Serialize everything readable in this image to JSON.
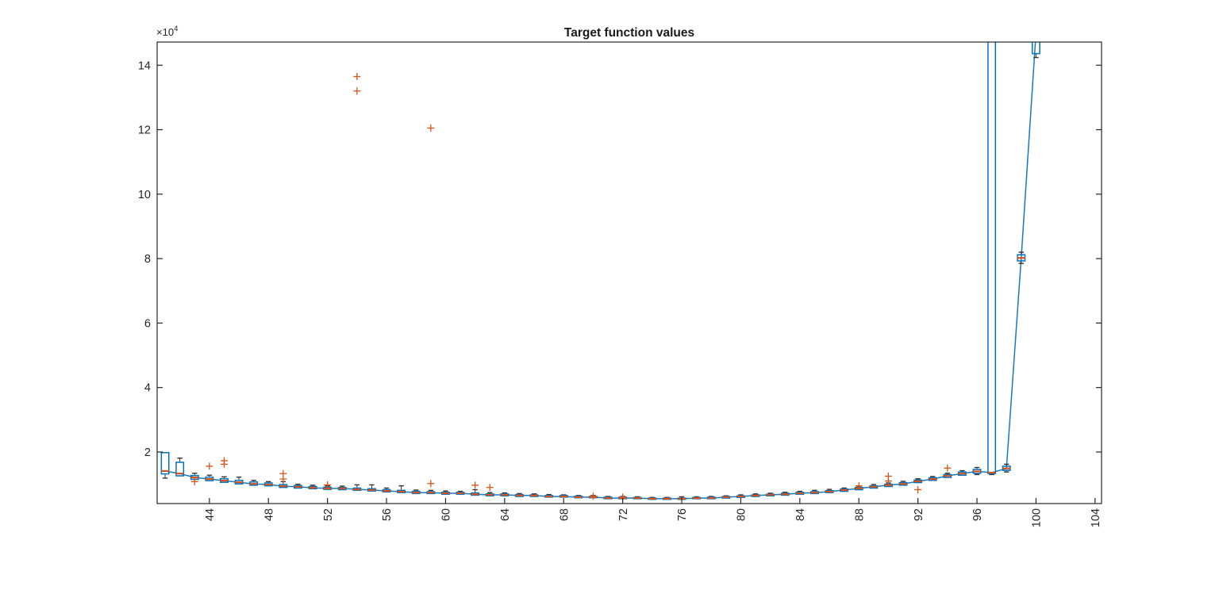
{
  "title": "Target function values",
  "y_axis": {
    "exponent_base": "×10",
    "exponent_power": "4",
    "ticks": [
      2,
      4,
      6,
      8,
      10,
      12,
      14
    ]
  },
  "x_axis": {
    "ticks": [
      44,
      48,
      52,
      56,
      60,
      64,
      68,
      72,
      76,
      80,
      84,
      88,
      92,
      96,
      100,
      104
    ]
  },
  "colors": {
    "box_edge": "#0072BD",
    "median": "#D95319",
    "median_line": "#1879BF",
    "whisker": "#333333",
    "outlier": "#D95319",
    "axis": "#262626",
    "background": "#ffffff"
  },
  "chart_data": {
    "type": "boxplot",
    "title": "Target function values",
    "xlabel": "",
    "ylabel": "×10^4",
    "value_unit": 10000,
    "xlim": [
      40.46,
      104.44
    ],
    "ylim_e4": [
      0.4,
      14.72
    ],
    "grid": false,
    "legend": "none",
    "notes": "Blue line connects box medians; boxes at x=97 and x=100 extend above the top axis (clipped); values in units of 1e4.",
    "box_format": [
      "x",
      "whisker_lo",
      "q1",
      "median",
      "q3",
      "whisker_hi"
    ],
    "boxes": [
      [
        41,
        1.19,
        1.32,
        1.41,
        1.98,
        1.98
      ],
      [
        42,
        1.26,
        1.26,
        1.33,
        1.68,
        1.81
      ],
      [
        43,
        1.15,
        1.15,
        1.21,
        1.27,
        1.34
      ],
      [
        44,
        1.11,
        1.11,
        1.16,
        1.22,
        1.28
      ],
      [
        45,
        1.06,
        1.06,
        1.11,
        1.17,
        1.23
      ],
      [
        46,
        1.01,
        1.01,
        1.06,
        1.12,
        1.22
      ],
      [
        47,
        0.97,
        0.97,
        1.01,
        1.07,
        1.12
      ],
      [
        48,
        0.95,
        0.95,
        0.99,
        1.04,
        1.08
      ],
      [
        49,
        0.9,
        0.9,
        0.94,
        0.99,
        1.08
      ],
      [
        50,
        0.88,
        0.88,
        0.92,
        0.96,
        1.0
      ],
      [
        51,
        0.86,
        0.86,
        0.89,
        0.93,
        0.97
      ],
      [
        52,
        0.84,
        0.84,
        0.87,
        0.91,
        0.95
      ],
      [
        53,
        0.83,
        0.83,
        0.87,
        0.9,
        0.94
      ],
      [
        54,
        0.81,
        0.81,
        0.84,
        0.88,
        0.98
      ],
      [
        55,
        0.79,
        0.79,
        0.82,
        0.86,
        0.98
      ],
      [
        56,
        0.76,
        0.76,
        0.79,
        0.83,
        0.88
      ],
      [
        57,
        0.74,
        0.74,
        0.77,
        0.81,
        0.95
      ],
      [
        58,
        0.71,
        0.71,
        0.74,
        0.78,
        0.82
      ],
      [
        59,
        0.71,
        0.71,
        0.74,
        0.77,
        0.81
      ],
      [
        60,
        0.69,
        0.69,
        0.72,
        0.75,
        0.79
      ],
      [
        61,
        0.69,
        0.69,
        0.72,
        0.75,
        0.78
      ],
      [
        62,
        0.66,
        0.66,
        0.69,
        0.73,
        0.83
      ],
      [
        63,
        0.64,
        0.64,
        0.67,
        0.7,
        0.74
      ],
      [
        64,
        0.64,
        0.64,
        0.67,
        0.7,
        0.73
      ],
      [
        65,
        0.62,
        0.62,
        0.65,
        0.68,
        0.71
      ],
      [
        66,
        0.62,
        0.62,
        0.65,
        0.67,
        0.7
      ],
      [
        67,
        0.6,
        0.6,
        0.62,
        0.65,
        0.68
      ],
      [
        68,
        0.6,
        0.6,
        0.62,
        0.65,
        0.67
      ],
      [
        69,
        0.58,
        0.58,
        0.6,
        0.63,
        0.65
      ],
      [
        70,
        0.58,
        0.58,
        0.6,
        0.62,
        0.65
      ],
      [
        71,
        0.55,
        0.55,
        0.57,
        0.6,
        0.62
      ],
      [
        72,
        0.55,
        0.55,
        0.57,
        0.6,
        0.62
      ],
      [
        73,
        0.55,
        0.55,
        0.57,
        0.59,
        0.61
      ],
      [
        74,
        0.53,
        0.53,
        0.55,
        0.57,
        0.59
      ],
      [
        75,
        0.53,
        0.53,
        0.55,
        0.57,
        0.59
      ],
      [
        76,
        0.53,
        0.53,
        0.55,
        0.57,
        0.61
      ],
      [
        77,
        0.55,
        0.55,
        0.57,
        0.59,
        0.61
      ],
      [
        78,
        0.55,
        0.55,
        0.57,
        0.6,
        0.62
      ],
      [
        79,
        0.57,
        0.57,
        0.6,
        0.62,
        0.64
      ],
      [
        80,
        0.59,
        0.59,
        0.62,
        0.64,
        0.67
      ],
      [
        81,
        0.62,
        0.62,
        0.65,
        0.67,
        0.7
      ],
      [
        82,
        0.64,
        0.64,
        0.67,
        0.69,
        0.72
      ],
      [
        83,
        0.66,
        0.66,
        0.69,
        0.72,
        0.75
      ],
      [
        84,
        0.69,
        0.69,
        0.72,
        0.75,
        0.78
      ],
      [
        85,
        0.71,
        0.71,
        0.74,
        0.77,
        0.81
      ],
      [
        86,
        0.74,
        0.74,
        0.77,
        0.8,
        0.84
      ],
      [
        87,
        0.78,
        0.78,
        0.82,
        0.85,
        0.88
      ],
      [
        88,
        0.83,
        0.83,
        0.87,
        0.9,
        0.94
      ],
      [
        89,
        0.88,
        0.88,
        0.92,
        0.95,
        0.99
      ],
      [
        90,
        0.93,
        0.93,
        0.97,
        1.0,
        1.04
      ],
      [
        91,
        0.97,
        0.97,
        1.01,
        1.05,
        1.09
      ],
      [
        92,
        1.05,
        1.05,
        1.09,
        1.13,
        1.17
      ],
      [
        93,
        1.12,
        1.12,
        1.16,
        1.2,
        1.24
      ],
      [
        94,
        1.21,
        1.21,
        1.26,
        1.3,
        1.34
      ],
      [
        95,
        1.28,
        1.28,
        1.33,
        1.38,
        1.42
      ],
      [
        96,
        1.3,
        1.34,
        1.4,
        1.46,
        1.52
      ],
      [
        97,
        1.3,
        1.33,
        1.36,
        16.0,
        16.0
      ],
      [
        98,
        1.38,
        1.43,
        1.49,
        1.56,
        1.62
      ],
      [
        99,
        7.85,
        7.93,
        8.02,
        8.12,
        8.2
      ],
      [
        100,
        14.24,
        14.36,
        15.0,
        16.0,
        16.0
      ]
    ],
    "outlier_format": [
      "x",
      "value"
    ],
    "outliers": [
      [
        43,
        1.08
      ],
      [
        44,
        1.56
      ],
      [
        45,
        1.62
      ],
      [
        45,
        1.73
      ],
      [
        49,
        1.16
      ],
      [
        49,
        1.33
      ],
      [
        52,
        0.98
      ],
      [
        54,
        13.2
      ],
      [
        54,
        13.65
      ],
      [
        59,
        1.02
      ],
      [
        59,
        12.05
      ],
      [
        62,
        0.97
      ],
      [
        63,
        0.9
      ],
      [
        70,
        0.63
      ],
      [
        72,
        0.6
      ],
      [
        88,
        0.95
      ],
      [
        90,
        1.1
      ],
      [
        90,
        1.25
      ],
      [
        92,
        0.83
      ],
      [
        94,
        1.5
      ]
    ]
  }
}
